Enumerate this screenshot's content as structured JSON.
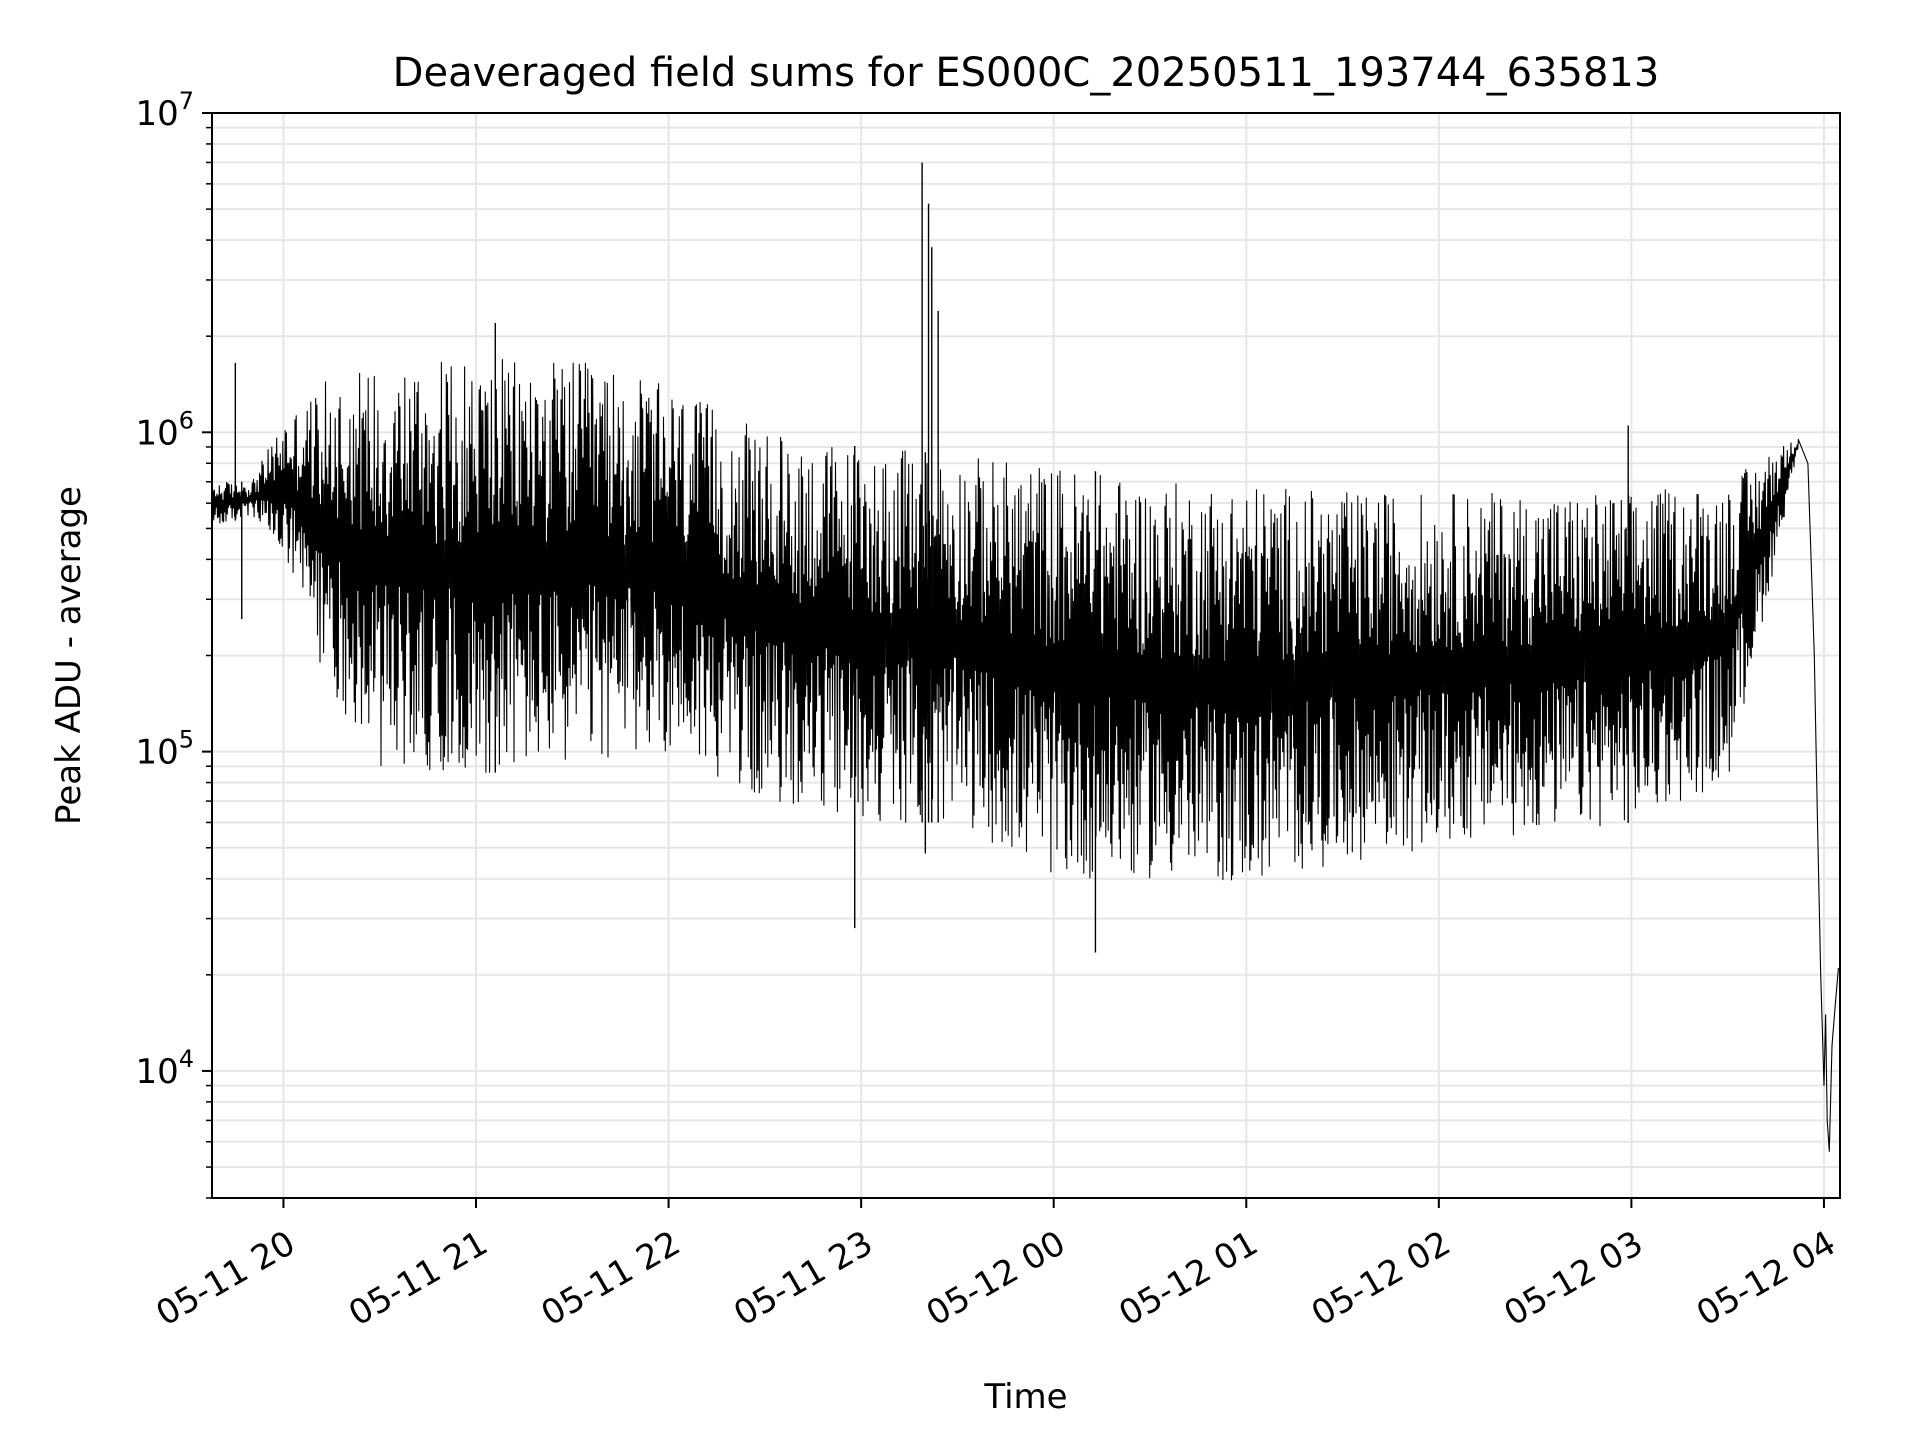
{
  "chart_data": {
    "type": "line",
    "title": "Deaveraged field sums for ES000C_20250511_193744_635813",
    "xlabel": "Time",
    "ylabel": "Peak ADU - average",
    "yscale": "log",
    "ylim": [
      4000,
      10000000
    ],
    "xlim": [
      "2025-05-11 19:37:44",
      "2025-05-12 04:05:00"
    ],
    "grid": true,
    "line_color": "#000000",
    "grid_color": "#e6e6e6",
    "x_ticks": [
      {
        "t": "2025-05-11 20:00",
        "label": "05-11 20"
      },
      {
        "t": "2025-05-11 21:00",
        "label": "05-11 21"
      },
      {
        "t": "2025-05-11 22:00",
        "label": "05-11 22"
      },
      {
        "t": "2025-05-11 23:00",
        "label": "05-11 23"
      },
      {
        "t": "2025-05-12 00:00",
        "label": "05-12 00"
      },
      {
        "t": "2025-05-12 01:00",
        "label": "05-12 01"
      },
      {
        "t": "2025-05-12 02:00",
        "label": "05-12 02"
      },
      {
        "t": "2025-05-12 03:00",
        "label": "05-12 03"
      },
      {
        "t": "2025-05-12 04:00",
        "label": "05-12 04"
      }
    ],
    "y_ticks": [
      {
        "value": 10000,
        "base": "10",
        "exp": "4"
      },
      {
        "value": 100000,
        "base": "10",
        "exp": "5"
      },
      {
        "value": 1000000,
        "base": "10",
        "exp": "6"
      },
      {
        "value": 10000000,
        "base": "10",
        "exp": "7"
      }
    ],
    "envelope": {
      "note_units": "time, peak ADU - average",
      "upper": [
        [
          "2025-05-11 19:37:44",
          700000
        ],
        [
          "2025-05-11 19:50:00",
          700000
        ],
        [
          "2025-05-11 20:00:00",
          1100000
        ],
        [
          "2025-05-11 20:15:00",
          1500000
        ],
        [
          "2025-05-11 20:30:00",
          1700000
        ],
        [
          "2025-05-11 21:00:00",
          1700000
        ],
        [
          "2025-05-11 21:30:00",
          1700000
        ],
        [
          "2025-05-11 22:00:00",
          1400000
        ],
        [
          "2025-05-11 22:30:00",
          1000000
        ],
        [
          "2025-05-11 23:00:00",
          900000
        ],
        [
          "2025-05-11 23:30:00",
          850000
        ],
        [
          "2025-05-12 00:00:00",
          800000
        ],
        [
          "2025-05-12 00:30:00",
          700000
        ],
        [
          "2025-05-12 01:00:00",
          700000
        ],
        [
          "2025-05-12 01:30:00",
          650000
        ],
        [
          "2025-05-12 02:00:00",
          650000
        ],
        [
          "2025-05-12 02:30:00",
          650000
        ],
        [
          "2025-05-12 03:00:00",
          650000
        ],
        [
          "2025-05-12 03:30:00",
          700000
        ],
        [
          "2025-05-12 03:45:00",
          900000
        ],
        [
          "2025-05-12 03:52:00",
          950000
        ]
      ],
      "lower": [
        [
          "2025-05-11 19:37:44",
          500000
        ],
        [
          "2025-05-11 19:50:00",
          550000
        ],
        [
          "2025-05-11 20:00:00",
          400000
        ],
        [
          "2025-05-11 20:15:00",
          150000
        ],
        [
          "2025-05-11 20:30:00",
          90000
        ],
        [
          "2025-05-11 21:00:00",
          85000
        ],
        [
          "2025-05-11 21:30:00",
          90000
        ],
        [
          "2025-05-11 22:00:00",
          100000
        ],
        [
          "2025-05-11 22:30:00",
          70000
        ],
        [
          "2025-05-11 23:00:00",
          60000
        ],
        [
          "2025-05-11 23:30:00",
          60000
        ],
        [
          "2025-05-12 00:00:00",
          40000
        ],
        [
          "2025-05-12 00:30:00",
          40000
        ],
        [
          "2025-05-12 01:00:00",
          38000
        ],
        [
          "2025-05-12 01:30:00",
          45000
        ],
        [
          "2025-05-12 02:00:00",
          50000
        ],
        [
          "2025-05-12 02:30:00",
          55000
        ],
        [
          "2025-05-12 03:00:00",
          60000
        ],
        [
          "2025-05-12 03:30:00",
          80000
        ],
        [
          "2025-05-12 03:45:00",
          400000
        ],
        [
          "2025-05-12 03:52:00",
          900000
        ]
      ]
    },
    "points": [
      [
        "2025-05-11 19:45:00",
        1650000
      ],
      [
        "2025-05-11 19:47:00",
        260000
      ],
      [
        "2025-05-11 21:06:00",
        2200000
      ],
      [
        "2025-05-11 22:58:00",
        28000
      ],
      [
        "2025-05-11 23:19:00",
        7000000
      ],
      [
        "2025-05-11 23:20:00",
        48000
      ],
      [
        "2025-05-11 23:21:00",
        5200000
      ],
      [
        "2025-05-11 23:22:00",
        3800000
      ],
      [
        "2025-05-11 23:24:00",
        2400000
      ],
      [
        "2025-05-12 00:13:00",
        23500
      ],
      [
        "2025-05-12 02:59:00",
        1050000
      ]
    ],
    "tail": [
      [
        "2025-05-12 03:52:00",
        950000
      ],
      [
        "2025-05-12 03:55:00",
        800000
      ],
      [
        "2025-05-12 03:57:00",
        200000
      ],
      [
        "2025-05-12 03:58:00",
        60000
      ],
      [
        "2025-05-12 03:59:00",
        20000
      ],
      [
        "2025-05-12 04:00:00",
        9000
      ],
      [
        "2025-05-12 04:00:30",
        15000
      ],
      [
        "2025-05-12 04:01:00",
        7000
      ],
      [
        "2025-05-12 04:01:40",
        5600
      ],
      [
        "2025-05-12 04:02:30",
        12000
      ],
      [
        "2025-05-12 04:03:30",
        16000
      ],
      [
        "2025-05-12 04:04:30",
        21000
      ]
    ]
  }
}
